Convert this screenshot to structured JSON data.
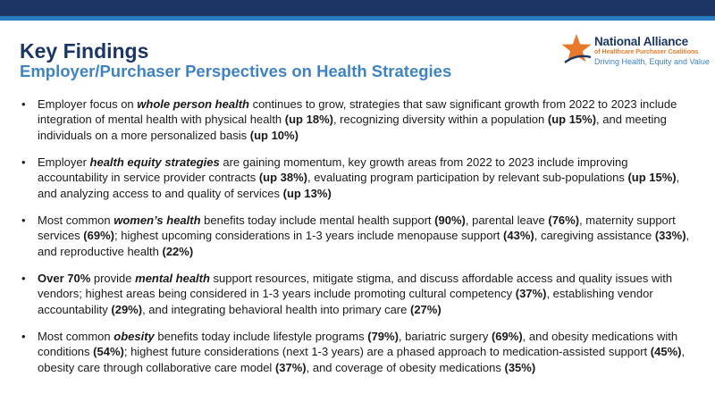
{
  "header": {
    "title": "Key Findings",
    "subtitle": "Employer/Purchaser Perspectives on Health Strategies"
  },
  "logo": {
    "icon": "star-icon",
    "name": "National Alliance",
    "sub": "of Healthcare Purchaser Coalitions",
    "tagline": "Driving Health, Equity and Value"
  },
  "bullets": [
    {
      "p1": "Employer focus on ",
      "e1": "whole person health",
      "p2": " continues to grow, strategies that saw significant growth from 2022 to 2023 include integration of mental health with physical health ",
      "b1": "(up 18%)",
      "p3": ", recognizing diversity within a population ",
      "b2": "(up 15%)",
      "p4": ", and meeting individuals on a more personalized basis ",
      "b3": "(up 10%)"
    },
    {
      "p1": "Employer ",
      "e1": "health equity strategies",
      "p2": " are gaining momentum, key growth areas from 2022 to 2023 include improving accountability in service provider contracts ",
      "b1": "(up 38%)",
      "p3": ", evaluating program participation by relevant sub-populations ",
      "b2": "(up 15%)",
      "p4": ", and analyzing access to and quality of services ",
      "b3": "(up 13%)"
    },
    {
      "p1": "Most common ",
      "e1": "women’s health",
      "p2": " benefits today include mental health support ",
      "b1": "(90%)",
      "p3": ", parental leave ",
      "b2": "(76%)",
      "p4": ", maternity support services ",
      "b3": "(69%)",
      "p5": "; highest upcoming considerations in 1-3 years include menopause support ",
      "b4": "(43%)",
      "p6": ", caregiving assistance ",
      "b5": "(33%)",
      "p7": ", and reproductive health ",
      "b6": "(22%)"
    },
    {
      "b0": "Over 70%",
      "p1": " provide ",
      "e1": "mental health",
      "p2": " support resources, mitigate stigma, and discuss affordable access and quality issues with vendors; highest areas being considered in 1-3 years include promoting cultural competency ",
      "b1": "(37%)",
      "p3": ", establishing vendor accountability ",
      "b2": "(29%)",
      "p4": ", and integrating behavioral health into primary care ",
      "b3": "(27%)"
    },
    {
      "p1": "Most common ",
      "e1": "obesity",
      "p2": " benefits today include lifestyle programs ",
      "b1": "(79%)",
      "p3": ", bariatric surgery ",
      "b2": "(69%)",
      "p4": ", and obesity medications with conditions ",
      "b3": "(54%)",
      "p5": "; highest future considerations (next 1-3 years) are a phased approach to medication-assisted support ",
      "b4": "(45%)",
      "p6": ", obesity care through collaborative care model ",
      "b5": "(37%)",
      "p7": ", and coverage of obesity medications ",
      "b6": "(35%)"
    }
  ]
}
